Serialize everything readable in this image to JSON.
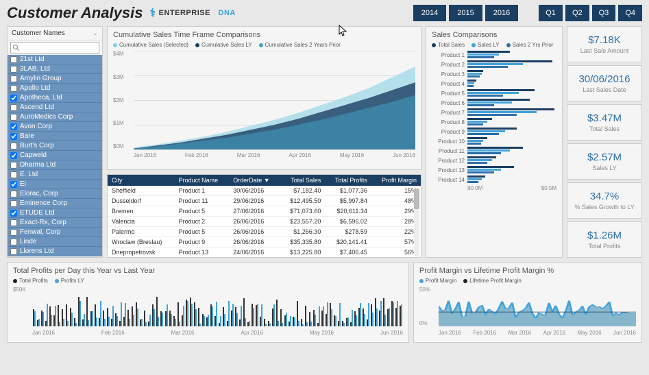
{
  "header": {
    "title": "Customer Analysis",
    "logo_text": "ENTERPRISE",
    "logo_accent": "DNA",
    "years": [
      "2014",
      "2015",
      "2016"
    ],
    "quarters": [
      "Q1",
      "Q2",
      "Q3",
      "Q4"
    ]
  },
  "sidebar": {
    "header": "Customer Names",
    "search_placeholder": "",
    "customers": [
      {
        "name": "21st Ltd",
        "checked": false
      },
      {
        "name": "3LAB, Ltd",
        "checked": false
      },
      {
        "name": "Amylin Group",
        "checked": false
      },
      {
        "name": "Apollo Ltd",
        "checked": false
      },
      {
        "name": "Apotheca, Ltd",
        "checked": true
      },
      {
        "name": "Ascend Ltd",
        "checked": false
      },
      {
        "name": "AuroMedics Corp",
        "checked": false
      },
      {
        "name": "Avon Corp",
        "checked": true
      },
      {
        "name": "Bare",
        "checked": true
      },
      {
        "name": "Burt's Corp",
        "checked": false
      },
      {
        "name": "Capweld",
        "checked": true
      },
      {
        "name": "Dharma Ltd",
        "checked": false
      },
      {
        "name": "E. Ltd",
        "checked": false
      },
      {
        "name": "Ei",
        "checked": true
      },
      {
        "name": "Elorac, Corp",
        "checked": false
      },
      {
        "name": "Eminence Corp",
        "checked": false
      },
      {
        "name": "ETUDE Ltd",
        "checked": true
      },
      {
        "name": "Exact-Rx, Corp",
        "checked": false
      },
      {
        "name": "Fenwal, Corp",
        "checked": false
      },
      {
        "name": "Linde",
        "checked": false
      },
      {
        "name": "Llorens Ltd",
        "checked": false
      }
    ]
  },
  "cumulative_chart": {
    "title": "Cumulative Sales Time Frame Comparisons",
    "legend": [
      {
        "label": "Cumulative Sales (Selected)",
        "color": "#7fd0e8"
      },
      {
        "label": "Cumulative Sales LY",
        "color": "#1b3e63"
      },
      {
        "label": "Cumulative Sales 2 Years Prior",
        "color": "#3ea3c9"
      }
    ],
    "y_ticks": [
      "$4M",
      "$3M",
      "$2M",
      "$1M",
      "$0M"
    ],
    "x_ticks": [
      "Jan 2016",
      "Feb 2016",
      "Mar 2016",
      "Apr 2016",
      "May 2016",
      "Jun 2016"
    ],
    "ylim": [
      0,
      4000000
    ],
    "series": {
      "selected": [
        0.02,
        0.05,
        0.09,
        0.13,
        0.18,
        0.24,
        0.3,
        0.37,
        0.45,
        0.53,
        0.62,
        0.73,
        0.84
      ],
      "ly": [
        0.01,
        0.04,
        0.07,
        0.11,
        0.15,
        0.2,
        0.25,
        0.31,
        0.38,
        0.45,
        0.52,
        0.6,
        0.68
      ],
      "prior2": [
        0.01,
        0.03,
        0.06,
        0.09,
        0.12,
        0.16,
        0.2,
        0.25,
        0.3,
        0.36,
        0.42,
        0.48,
        0.55
      ]
    },
    "colors": {
      "selected": "#a8dce9",
      "ly": "#1b3e63",
      "prior2": "#3d8db1",
      "grid": "#dddddd",
      "bg": "#f5f5f5"
    }
  },
  "sales_table": {
    "columns": [
      "City",
      "Product Name",
      "OrderDate",
      "Total Sales",
      "Total Profits",
      "Profit Margin"
    ],
    "sort_col": 2,
    "rows": [
      [
        "Sheffield",
        "Product 1",
        "30/06/2016",
        "$7,182.40",
        "$1,077.36",
        "15%"
      ],
      [
        "Dusseldorf",
        "Product 11",
        "29/06/2016",
        "$12,495.50",
        "$5,997.84",
        "48%"
      ],
      [
        "Bremen",
        "Product 5",
        "27/06/2016",
        "$71,073.60",
        "$20,611.34",
        "29%"
      ],
      [
        "Valencia",
        "Product 2",
        "26/06/2016",
        "$23,557.20",
        "$6,596.02",
        "28%"
      ],
      [
        "Palermo",
        "Product 5",
        "26/06/2016",
        "$1,266.30",
        "$278.59",
        "22%"
      ],
      [
        "Wroclaw (Breslau)",
        "Product 9",
        "26/06/2016",
        "$35,335.80",
        "$20,141.41",
        "57%"
      ],
      [
        "Dnepropetrovsk",
        "Product 13",
        "24/06/2016",
        "$13,225.80",
        "$7,406.45",
        "56%"
      ]
    ]
  },
  "sales_comparisons": {
    "title": "Sales Comparisons",
    "legend": [
      {
        "label": "Total Sales",
        "color": "#1b3e63"
      },
      {
        "label": "Sales LY",
        "color": "#41a3db"
      },
      {
        "label": "Sales 2 Yrs Prior",
        "color": "#2c6fa8"
      }
    ],
    "x_ticks": [
      "$0.0M",
      "$0.5M"
    ],
    "xlim": [
      0,
      700000
    ],
    "products": [
      {
        "name": "Product 1",
        "total": 0.48,
        "ly": 0.35,
        "p2": 0.3
      },
      {
        "name": "Product 2",
        "total": 0.95,
        "ly": 0.62,
        "p2": 0.45
      },
      {
        "name": "Product 3",
        "total": 0.18,
        "ly": 0.16,
        "p2": 0.14
      },
      {
        "name": "Product 4",
        "total": 0.1,
        "ly": 0.08,
        "p2": 0.07
      },
      {
        "name": "Product 5",
        "total": 0.75,
        "ly": 0.58,
        "p2": 0.4
      },
      {
        "name": "Product 6",
        "total": 0.7,
        "ly": 0.5,
        "p2": 0.3
      },
      {
        "name": "Product 7",
        "total": 0.98,
        "ly": 0.78,
        "p2": 0.55
      },
      {
        "name": "Product 8",
        "total": 0.28,
        "ly": 0.22,
        "p2": 0.18
      },
      {
        "name": "Product 9",
        "total": 0.55,
        "ly": 0.42,
        "p2": 0.35
      },
      {
        "name": "Product 10",
        "total": 0.22,
        "ly": 0.18,
        "p2": 0.15
      },
      {
        "name": "Product 11",
        "total": 0.62,
        "ly": 0.48,
        "p2": 0.38
      },
      {
        "name": "Product 12",
        "total": 0.32,
        "ly": 0.28,
        "p2": 0.22
      },
      {
        "name": "Product 13",
        "total": 0.52,
        "ly": 0.38,
        "p2": 0.3
      },
      {
        "name": "Product 14",
        "total": 0.2,
        "ly": 0.16,
        "p2": 0.12
      }
    ]
  },
  "kpis": [
    {
      "value": "$7.18K",
      "label": "Last Sale Amount"
    },
    {
      "value": "30/06/2016",
      "label": "Last Sales Date"
    },
    {
      "value": "$3.47M",
      "label": "Total Sales"
    },
    {
      "value": "$2.57M",
      "label": "Sales LY"
    },
    {
      "value": "34.7%",
      "label": "% Sales Growth to LY"
    },
    {
      "value": "$1.26M",
      "label": "Total Profits"
    }
  ],
  "profits_daily": {
    "title": "Total Profits per Day this Year vs Last Year",
    "legend": [
      {
        "label": "Total Profits",
        "color": "#222222"
      },
      {
        "label": "Profits LY",
        "color": "#41a3db"
      }
    ],
    "y_tick": "$50K",
    "ylim": [
      0,
      50000
    ],
    "x_ticks": [
      "Jan 2016",
      "Feb 2016",
      "Mar 2016",
      "Apr 2016",
      "May 2016",
      "Jun 2016"
    ],
    "colors": {
      "current": "#333333",
      "ly": "#41a3db"
    }
  },
  "margin_chart": {
    "title": "Profit Margin vs Lifetime Profit Margin %",
    "legend": [
      {
        "label": "Profit Margin",
        "color": "#41a3db"
      },
      {
        "label": "Lifetime Profit Margin",
        "color": "#222222"
      }
    ],
    "y_tick": "50%",
    "y_zero": "0%",
    "ylim": [
      0,
      80
    ],
    "x_ticks": [
      "Jan 2016",
      "Feb 2016",
      "Mar 2016",
      "Apr 2016",
      "May 2016",
      "Jun 2016"
    ],
    "lifetime_value": 36,
    "colors": {
      "margin": "#41a3db",
      "lifetime": "#1b3e63",
      "fill": "#3d8db1"
    }
  }
}
